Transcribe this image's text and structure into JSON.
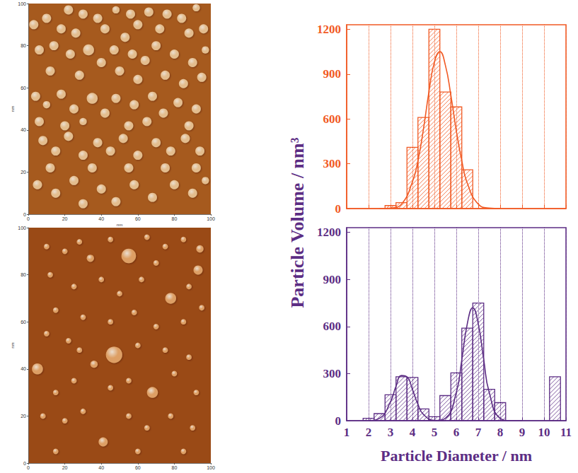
{
  "chart_data": [
    {
      "type": "scatter",
      "marker": "circle",
      "color": "#f5d3a4",
      "xlabel": "nm",
      "ylabel": "nm",
      "xlim": [
        0,
        100
      ],
      "ylim": [
        0,
        100
      ],
      "xticks": [
        0,
        20,
        40,
        60,
        80,
        100
      ],
      "yticks": [
        0,
        20,
        40,
        60,
        80,
        100
      ],
      "x": [
        22,
        30,
        38,
        48,
        56,
        60,
        66,
        76,
        84,
        92,
        3,
        10,
        18,
        26,
        42,
        53,
        72,
        88,
        96,
        6,
        14,
        23,
        33,
        40,
        47,
        57,
        64,
        70,
        80,
        90,
        97,
        12,
        28,
        50,
        60,
        75,
        85,
        95,
        4,
        10,
        18,
        25,
        35,
        42,
        48,
        58,
        68,
        74,
        82,
        92,
        6,
        20,
        30,
        55,
        65,
        88,
        8,
        15,
        22,
        30,
        38,
        45,
        52,
        60,
        70,
        78,
        86,
        94,
        12,
        35,
        55,
        75,
        92,
        5,
        15,
        25,
        40,
        48,
        58,
        68,
        80,
        90,
        97,
        30
      ],
      "y": [
        97,
        95,
        93,
        97,
        95,
        90,
        96,
        95,
        93,
        98,
        90,
        93,
        88,
        86,
        88,
        84,
        88,
        86,
        88,
        78,
        80,
        76,
        78,
        72,
        78,
        76,
        73,
        80,
        76,
        72,
        78,
        68,
        66,
        68,
        64,
        66,
        62,
        65,
        56,
        52,
        57,
        50,
        55,
        48,
        55,
        52,
        56,
        48,
        53,
        50,
        44,
        42,
        44,
        42,
        44,
        42,
        35,
        30,
        37,
        28,
        34,
        30,
        36,
        28,
        34,
        30,
        36,
        30,
        22,
        22,
        22,
        22,
        22,
        14,
        10,
        16,
        12,
        6,
        14,
        8,
        14,
        10,
        16,
        5
      ],
      "size": [
        5,
        5,
        5,
        4,
        5,
        5,
        5,
        5,
        5,
        4,
        5,
        5,
        5,
        5,
        5,
        5,
        5,
        5,
        5,
        5,
        5,
        5,
        6,
        5,
        5,
        5,
        5,
        5,
        5,
        5,
        4,
        5,
        5,
        5,
        5,
        5,
        5,
        5,
        5,
        4,
        5,
        5,
        6,
        5,
        5,
        5,
        5,
        5,
        5,
        5,
        5,
        5,
        4,
        5,
        5,
        5,
        5,
        5,
        5,
        5,
        5,
        5,
        5,
        5,
        5,
        5,
        5,
        5,
        5,
        5,
        5,
        5,
        5,
        5,
        5,
        5,
        5,
        5,
        5,
        5,
        5,
        5,
        4,
        5
      ]
    },
    {
      "type": "scatter",
      "marker": "circle",
      "color": "#f0b274",
      "ylabel": "nm",
      "xlim": [
        0,
        100
      ],
      "ylim": [
        0,
        100
      ],
      "xticks": [
        0,
        20,
        40,
        60,
        80,
        100
      ],
      "yticks": [
        0,
        20,
        40,
        60,
        80,
        100
      ],
      "x": [
        55,
        47,
        5,
        78,
        68,
        93,
        41,
        34,
        36,
        22,
        94,
        10,
        20,
        28,
        45,
        65,
        75,
        85,
        12,
        25,
        40,
        50,
        62,
        70,
        88,
        15,
        30,
        45,
        58,
        70,
        85,
        95,
        10,
        28,
        60,
        75,
        88,
        15,
        25,
        45,
        55,
        80,
        92,
        8,
        20,
        30,
        55,
        65,
        78,
        90,
        15,
        60,
        85
      ],
      "y": [
        88,
        46,
        40,
        70,
        30,
        82,
        9,
        87,
        42,
        52,
        91,
        92,
        90,
        94,
        95,
        96,
        92,
        95,
        80,
        75,
        78,
        72,
        78,
        85,
        75,
        65,
        62,
        60,
        64,
        58,
        60,
        66,
        55,
        48,
        50,
        48,
        45,
        30,
        35,
        32,
        35,
        38,
        30,
        20,
        18,
        22,
        20,
        15,
        20,
        15,
        5,
        5,
        5
      ],
      "size": [
        8,
        9,
        6,
        6,
        6,
        5,
        5,
        4,
        4,
        3,
        4,
        3,
        3,
        3,
        3,
        3,
        3,
        3,
        3,
        3,
        3,
        3,
        3,
        3,
        3,
        3,
        3,
        3,
        3,
        3,
        3,
        3,
        3,
        3,
        3,
        3,
        3,
        3,
        3,
        3,
        3,
        3,
        3,
        3,
        3,
        3,
        3,
        3,
        3,
        3,
        3,
        3,
        3
      ]
    },
    {
      "type": "histogram",
      "color": "#f15a24",
      "grid": "x",
      "tick_labels": "y",
      "bins": [
        2.75,
        3.25,
        3.75,
        4.25,
        4.75,
        5.25,
        5.75,
        6.25,
        6.75
      ],
      "values": [
        20,
        40,
        410,
        610,
        1200,
        780,
        680,
        260
      ],
      "fits": [
        {
          "x": [
            2.5,
            3,
            3.5,
            4,
            4.25,
            4.5,
            4.75,
            5,
            5.25,
            5.5,
            5.75,
            6,
            6.25,
            6.5,
            7,
            7.5,
            8
          ],
          "y": [
            0,
            3,
            30,
            180,
            320,
            530,
            780,
            980,
            1050,
            960,
            760,
            520,
            320,
            170,
            30,
            3,
            0
          ]
        }
      ],
      "xlim": [
        1,
        11
      ],
      "ylim": [
        0,
        1230
      ],
      "xticks": [
        1,
        2,
        3,
        4,
        5,
        6,
        7,
        8,
        9,
        10,
        11
      ],
      "yticks": [
        0,
        300,
        600,
        900,
        1200
      ]
    },
    {
      "type": "histogram",
      "color": "#5c2d84",
      "grid": "x",
      "xlabel": "Particle Diameter / nm",
      "ylabel": "Particle Volume / nm³",
      "bins": [
        1.75,
        2.25,
        2.75,
        3.25,
        3.75,
        4.25,
        4.75,
        5.25,
        5.75,
        6.25,
        6.75,
        7.25,
        7.75,
        8.25,
        8.75,
        9.25,
        9.75,
        10.25,
        10.75
      ],
      "values": [
        15,
        45,
        165,
        280,
        275,
        75,
        25,
        160,
        305,
        590,
        750,
        200,
        115,
        0,
        0,
        0,
        0,
        280
      ],
      "fits": [
        {
          "x": [
            2,
            2.5,
            3,
            3.25,
            3.5,
            3.75,
            4,
            4.25,
            4.5,
            5,
            5.5
          ],
          "y": [
            0,
            15,
            121,
            219,
            288,
            279,
            199,
            104,
            40,
            2,
            0
          ]
        },
        {
          "x": [
            5,
            5.5,
            6,
            6.25,
            6.5,
            6.75,
            7,
            7.25,
            7.5,
            8,
            8.5,
            9
          ],
          "y": [
            0,
            15,
            180,
            388,
            617,
            720,
            617,
            388,
            180,
            15,
            0,
            0
          ]
        }
      ],
      "xlim": [
        1,
        11
      ],
      "ylim": [
        0,
        1230
      ],
      "xticks": [
        1,
        2,
        3,
        4,
        5,
        6,
        7,
        8,
        9,
        10,
        11
      ],
      "yticks": [
        0,
        300,
        600,
        900,
        1200
      ]
    }
  ]
}
